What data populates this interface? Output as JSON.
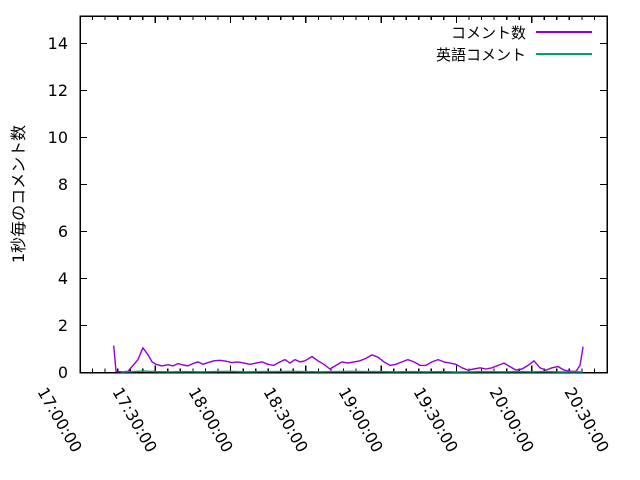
{
  "figure": {
    "background": "#ffffff",
    "text_color": "#000000",
    "border_color": "#000000"
  },
  "chart_data": {
    "type": "line",
    "title": "",
    "xlabel": "",
    "ylabel": "1秒毎のコメント数",
    "grid": false,
    "legend_position": "top-right-inside",
    "x_axis": {
      "unit": "time (HH:MM:SS)",
      "range_hours": [
        17.0,
        20.5
      ],
      "major_tick_hours": [
        17.0,
        17.5,
        18.0,
        18.5,
        19.0,
        19.5,
        20.0,
        20.5
      ],
      "major_tick_labels": [
        "17:00:00",
        "17:30:00",
        "18:00:00",
        "18:30:00",
        "19:00:00",
        "19:30:00",
        "20:00:00",
        "20:30:00"
      ],
      "minor_tick_interval_hours": 0.0833333
    },
    "y_axis": {
      "range": [
        0,
        15.1
      ],
      "major_tick_values": [
        0,
        2,
        4,
        6,
        8,
        10,
        12,
        14
      ],
      "major_tick_labels": [
        "0",
        "2",
        "4",
        "6",
        "8",
        "10",
        "12",
        "14"
      ]
    },
    "series": [
      {
        "key": "comments",
        "name": "コメント数",
        "color": "#9400d3",
        "points": [
          [
            17.224,
            1.15
          ],
          [
            17.239,
            0.05
          ],
          [
            17.279,
            0.02
          ],
          [
            17.319,
            0.05
          ],
          [
            17.352,
            0.3
          ],
          [
            17.385,
            0.55
          ],
          [
            17.418,
            1.05
          ],
          [
            17.452,
            0.75
          ],
          [
            17.478,
            0.45
          ],
          [
            17.505,
            0.35
          ],
          [
            17.545,
            0.28
          ],
          [
            17.584,
            0.33
          ],
          [
            17.618,
            0.28
          ],
          [
            17.651,
            0.38
          ],
          [
            17.684,
            0.32
          ],
          [
            17.717,
            0.28
          ],
          [
            17.75,
            0.38
          ],
          [
            17.784,
            0.45
          ],
          [
            17.817,
            0.35
          ],
          [
            17.85,
            0.42
          ],
          [
            17.89,
            0.5
          ],
          [
            17.93,
            0.52
          ],
          [
            17.97,
            0.48
          ],
          [
            18.009,
            0.42
          ],
          [
            18.049,
            0.45
          ],
          [
            18.089,
            0.4
          ],
          [
            18.129,
            0.35
          ],
          [
            18.169,
            0.4
          ],
          [
            18.209,
            0.45
          ],
          [
            18.248,
            0.35
          ],
          [
            18.288,
            0.3
          ],
          [
            18.328,
            0.45
          ],
          [
            18.361,
            0.55
          ],
          [
            18.395,
            0.4
          ],
          [
            18.428,
            0.55
          ],
          [
            18.461,
            0.45
          ],
          [
            18.494,
            0.5
          ],
          [
            18.541,
            0.68
          ],
          [
            18.58,
            0.5
          ],
          [
            18.62,
            0.35
          ],
          [
            18.66,
            0.15
          ],
          [
            18.7,
            0.3
          ],
          [
            18.74,
            0.45
          ],
          [
            18.78,
            0.4
          ],
          [
            18.82,
            0.45
          ],
          [
            18.859,
            0.5
          ],
          [
            18.899,
            0.6
          ],
          [
            18.939,
            0.75
          ],
          [
            18.979,
            0.65
          ],
          [
            19.019,
            0.45
          ],
          [
            19.059,
            0.3
          ],
          [
            19.099,
            0.35
          ],
          [
            19.138,
            0.45
          ],
          [
            19.178,
            0.55
          ],
          [
            19.218,
            0.45
          ],
          [
            19.258,
            0.3
          ],
          [
            19.298,
            0.3
          ],
          [
            19.338,
            0.45
          ],
          [
            19.378,
            0.55
          ],
          [
            19.417,
            0.45
          ],
          [
            19.457,
            0.4
          ],
          [
            19.497,
            0.35
          ],
          [
            19.537,
            0.2
          ],
          [
            19.577,
            0.1
          ],
          [
            19.617,
            0.15
          ],
          [
            19.657,
            0.2
          ],
          [
            19.696,
            0.15
          ],
          [
            19.736,
            0.2
          ],
          [
            19.776,
            0.3
          ],
          [
            19.816,
            0.4
          ],
          [
            19.856,
            0.25
          ],
          [
            19.896,
            0.1
          ],
          [
            19.936,
            0.15
          ],
          [
            19.975,
            0.3
          ],
          [
            20.015,
            0.5
          ],
          [
            20.055,
            0.2
          ],
          [
            20.095,
            0.1
          ],
          [
            20.135,
            0.2
          ],
          [
            20.175,
            0.25
          ],
          [
            20.215,
            0.1
          ],
          [
            20.254,
            0.05
          ],
          [
            20.294,
            0.05
          ],
          [
            20.321,
            0.3
          ],
          [
            20.341,
            1.1
          ]
        ]
      },
      {
        "key": "english-comments",
        "name": "英語コメント",
        "color": "#009e73",
        "points": [
          [
            17.28,
            0.02
          ],
          [
            17.35,
            0.04
          ],
          [
            17.42,
            0.06
          ],
          [
            17.5,
            0.04
          ],
          [
            17.6,
            0.03
          ],
          [
            17.7,
            0.04
          ],
          [
            17.8,
            0.03
          ],
          [
            17.9,
            0.04
          ],
          [
            18.0,
            0.05
          ],
          [
            18.1,
            0.03
          ],
          [
            18.2,
            0.04
          ],
          [
            18.3,
            0.04
          ],
          [
            18.4,
            0.05
          ],
          [
            18.5,
            0.04
          ],
          [
            18.6,
            0.03
          ],
          [
            18.7,
            0.04
          ],
          [
            18.8,
            0.05
          ],
          [
            18.9,
            0.04
          ],
          [
            19.0,
            0.04
          ],
          [
            19.1,
            0.03
          ],
          [
            19.2,
            0.04
          ],
          [
            19.3,
            0.03
          ],
          [
            19.4,
            0.04
          ],
          [
            19.5,
            0.02
          ],
          [
            19.6,
            0.03
          ],
          [
            19.7,
            0.04
          ],
          [
            19.8,
            0.03
          ],
          [
            19.9,
            0.04
          ],
          [
            20.0,
            0.03
          ],
          [
            20.1,
            0.04
          ],
          [
            20.2,
            0.02
          ],
          [
            20.3,
            0.03
          ],
          [
            20.341,
            0.02
          ]
        ]
      }
    ]
  }
}
